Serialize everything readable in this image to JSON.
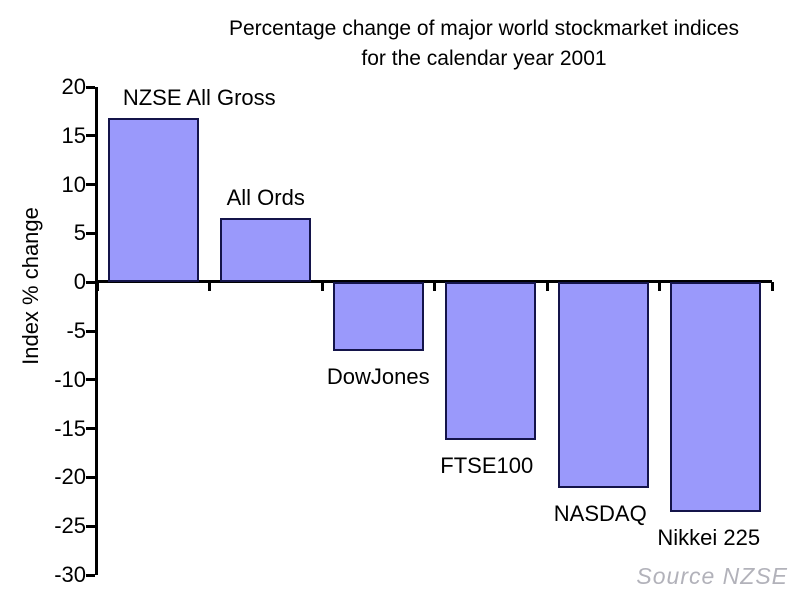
{
  "title": {
    "line1": "Percentage change of major world stockmarket indices",
    "line2": "for the calendar year 2001"
  },
  "y_axis": {
    "label": "Index % change",
    "min": -30,
    "max": 20,
    "step": 5
  },
  "source_note": "Source NZSE",
  "colors": {
    "bar_fill": "#9a99fb",
    "bar_border": "#14144a",
    "axis": "#000000",
    "source_text": "#b2b2ba"
  },
  "chart_data": {
    "type": "bar",
    "title": "Percentage change of major world stockmarket indices for the calendar year 2001",
    "categories": [
      "NZSE All Gross",
      "All Ords",
      "DowJones",
      "FTSE100",
      "NASDAQ",
      "Nikkei 225"
    ],
    "values": [
      16.8,
      6.6,
      -7.1,
      -16.2,
      -21.1,
      -23.5
    ],
    "xlabel": "",
    "ylabel": "Index % change",
    "ylim": [
      -30,
      20
    ],
    "ytick_step": 5,
    "grid": false,
    "legend": false,
    "bar_color": "#9a99fb",
    "label_dx": [
      46,
      0,
      0,
      -4,
      -3,
      -7
    ],
    "label_side_rule": "positive bars labeled above, negative bars labeled below"
  }
}
